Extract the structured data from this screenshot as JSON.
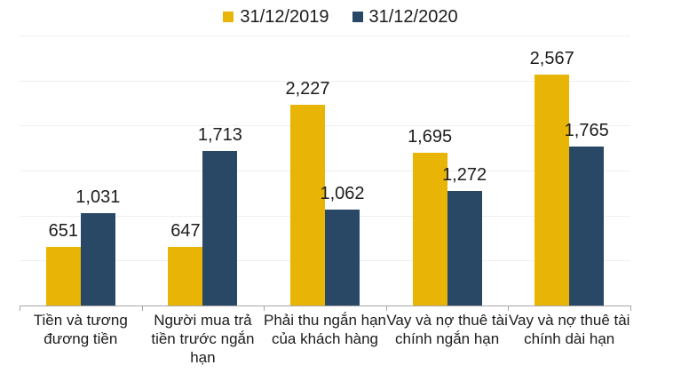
{
  "chart_data": {
    "type": "bar",
    "title": "",
    "xlabel": "",
    "ylabel": "",
    "categories": [
      "Tiền và tương đương tiền",
      "Người mua trả tiền trước ngắn hạn",
      "Phải thu ngắn hạn của khách hàng",
      "Vay và nợ thuê tài chính ngắn hạn",
      "Vay và nợ thuê tài chính dài hạn"
    ],
    "series": [
      {
        "name": "31/12/2019",
        "color": "#e8b406",
        "values": [
          651,
          647,
          2227,
          1695,
          2567
        ]
      },
      {
        "name": "31/12/2020",
        "color": "#284866",
        "values": [
          1031,
          1713,
          1062,
          1272,
          1765
        ]
      }
    ],
    "data_labels": [
      [
        "651",
        "647",
        "2,227",
        "1,695",
        "2,567"
      ],
      [
        "1,031",
        "1,713",
        "1,062",
        "1,272",
        "1,765"
      ]
    ],
    "ylim": [
      0,
      3000
    ],
    "grid_step": 500,
    "grid": true,
    "legend_position": "top",
    "axis_color": "#a6a6a6",
    "gridline_color": "#efefef",
    "text_color": "#1c1c1c"
  }
}
